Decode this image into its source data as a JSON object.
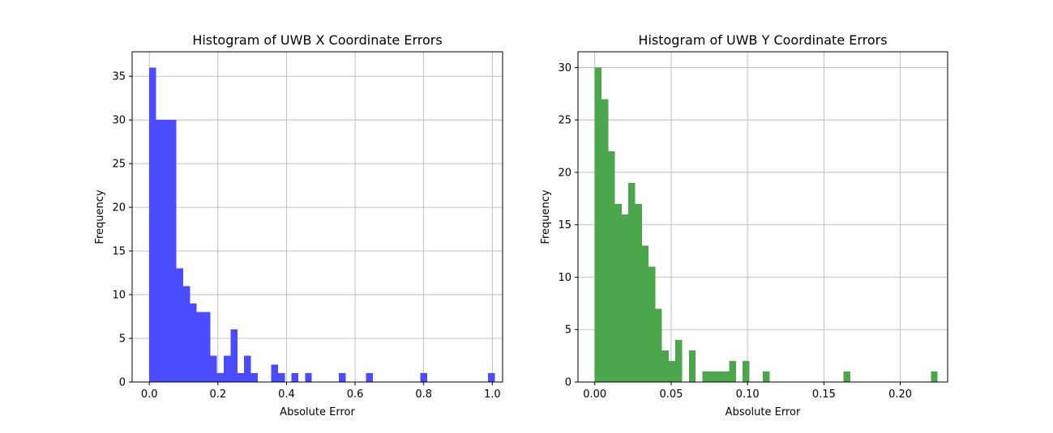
{
  "chart_data": [
    {
      "type": "bar",
      "title": "Histogram of UWB X Coordinate Errors",
      "xlabel": "Absolute Error",
      "ylabel": "Frequency",
      "xlim": [
        -0.05,
        1.03
      ],
      "ylim": [
        0,
        37.8
      ],
      "xticks": [
        0.0,
        0.2,
        0.4,
        0.6,
        0.8,
        1.0
      ],
      "xtick_labels": [
        "0.0",
        "0.2",
        "0.4",
        "0.6",
        "0.8",
        "1.0"
      ],
      "yticks": [
        0,
        5,
        10,
        15,
        20,
        25,
        30,
        35
      ],
      "ytick_labels": [
        "0",
        "5",
        "10",
        "15",
        "20",
        "25",
        "30",
        "35"
      ],
      "grid": true,
      "color": "#4b4bff",
      "bin_start": 0.0,
      "bin_width": 0.01975,
      "values": [
        36,
        30,
        30,
        30,
        13,
        11,
        9,
        8,
        8,
        3,
        1,
        3,
        6,
        1,
        3,
        1,
        0,
        0,
        2,
        1,
        0,
        1,
        0,
        1,
        0,
        0,
        0,
        0,
        1,
        0,
        0,
        0,
        1,
        0,
        0,
        0,
        0,
        0,
        0,
        0,
        1,
        0,
        0,
        0,
        0,
        0,
        0,
        0,
        0,
        0,
        1
      ]
    },
    {
      "type": "bar",
      "title": "Histogram of UWB Y Coordinate Errors",
      "xlabel": "Absolute Error",
      "ylabel": "Frequency",
      "xlim": [
        -0.011,
        0.231
      ],
      "ylim": [
        0,
        31.5
      ],
      "xticks": [
        0.0,
        0.05,
        0.1,
        0.15,
        0.2
      ],
      "xtick_labels": [
        "0.00",
        "0.05",
        "0.10",
        "0.15",
        "0.20"
      ],
      "yticks": [
        0,
        5,
        10,
        15,
        20,
        25,
        30
      ],
      "ytick_labels": [
        "0",
        "5",
        "10",
        "15",
        "20",
        "25",
        "30"
      ],
      "grid": true,
      "color": "#4ca64c",
      "bin_start": 0.0,
      "bin_width": 0.0044,
      "values": [
        30,
        27,
        22,
        17,
        16,
        19,
        17,
        13,
        11,
        7,
        3,
        2,
        4,
        0,
        3,
        0,
        1,
        1,
        1,
        1,
        2,
        0,
        2,
        0,
        0,
        1,
        0,
        0,
        0,
        0,
        0,
        0,
        0,
        0,
        0,
        0,
        0,
        1,
        0,
        0,
        0,
        0,
        0,
        0,
        0,
        0,
        0,
        0,
        0,
        0,
        1
      ]
    }
  ]
}
